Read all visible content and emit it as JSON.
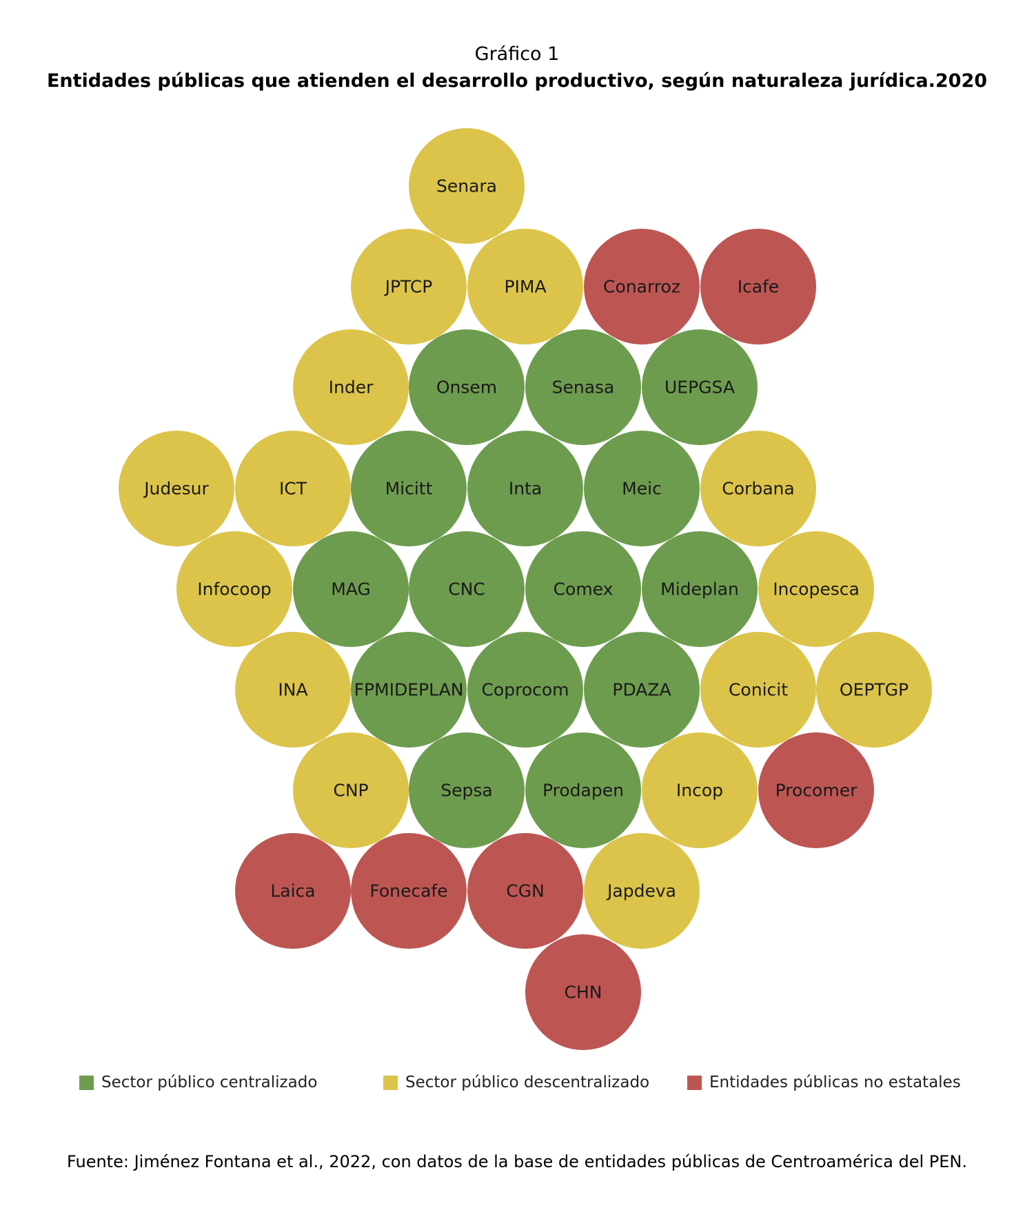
{
  "header": {
    "kicker": "Gráfico 1",
    "title": "Entidades públicas que atienden el desarrollo productivo, según naturaleza jurídica.2020"
  },
  "colors": {
    "centralizado": "#6e9c4f",
    "descentralizado": "#dcc44b",
    "no_estatal": "#bd5653"
  },
  "entities": [
    {
      "name": "Senara",
      "group": "descentralizado"
    },
    {
      "name": "JPTCP",
      "group": "descentralizado"
    },
    {
      "name": "PIMA",
      "group": "descentralizado"
    },
    {
      "name": "Conarroz",
      "group": "no_estatal"
    },
    {
      "name": "Icafe",
      "group": "no_estatal"
    },
    {
      "name": "Inder",
      "group": "descentralizado"
    },
    {
      "name": "Onsem",
      "group": "centralizado"
    },
    {
      "name": "Senasa",
      "group": "centralizado"
    },
    {
      "name": "UEPGSA",
      "group": "centralizado"
    },
    {
      "name": "Judesur",
      "group": "descentralizado"
    },
    {
      "name": "ICT",
      "group": "descentralizado"
    },
    {
      "name": "Micitt",
      "group": "centralizado"
    },
    {
      "name": "Inta",
      "group": "centralizado"
    },
    {
      "name": "Meic",
      "group": "centralizado"
    },
    {
      "name": "Corbana",
      "group": "descentralizado"
    },
    {
      "name": "Infocoop",
      "group": "descentralizado"
    },
    {
      "name": "MAG",
      "group": "centralizado"
    },
    {
      "name": "CNC",
      "group": "centralizado"
    },
    {
      "name": "Comex",
      "group": "centralizado"
    },
    {
      "name": "Mideplan",
      "group": "centralizado"
    },
    {
      "name": "Incopesca",
      "group": "descentralizado"
    },
    {
      "name": "INA",
      "group": "descentralizado"
    },
    {
      "name": "FPMIDEPLAN",
      "group": "centralizado"
    },
    {
      "name": "Coprocom",
      "group": "centralizado"
    },
    {
      "name": "PDAZA",
      "group": "centralizado"
    },
    {
      "name": "Conicit",
      "group": "descentralizado"
    },
    {
      "name": "OEPTGP",
      "group": "descentralizado"
    },
    {
      "name": "CNP",
      "group": "descentralizado"
    },
    {
      "name": "Sepsa",
      "group": "centralizado"
    },
    {
      "name": "Prodapen",
      "group": "centralizado"
    },
    {
      "name": "Incop",
      "group": "descentralizado"
    },
    {
      "name": "Procomer",
      "group": "no_estatal"
    },
    {
      "name": "Laica",
      "group": "no_estatal"
    },
    {
      "name": "Fonecafe",
      "group": "no_estatal"
    },
    {
      "name": "CGN",
      "group": "no_estatal"
    },
    {
      "name": "Japdeva",
      "group": "descentralizado"
    },
    {
      "name": "CHN",
      "group": "no_estatal"
    }
  ],
  "legend": [
    {
      "label": "Sector público centralizado",
      "group": "centralizado"
    },
    {
      "label": "Sector público descentralizado",
      "group": "descentralizado"
    },
    {
      "label": "Entidades públicas no estatales",
      "group": "no_estatal"
    }
  ],
  "source": "Fuente: Jiménez Fontana et al., 2022, con datos de la base de entidades públicas de Centroamérica del PEN."
}
